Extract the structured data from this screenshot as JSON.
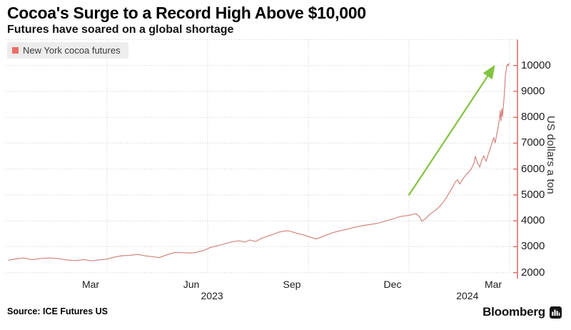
{
  "header": {
    "title": "Cocoa's Surge to a Record High Above $10,000",
    "subtitle": "Futures have soared on a global shortage"
  },
  "legend": {
    "label": "New York cocoa futures",
    "swatch_color": "#ee6c65"
  },
  "footer": {
    "source": "Source: ICE Futures US",
    "brand": "Bloomberg"
  },
  "chart_data": {
    "type": "line",
    "title": "Cocoa's Surge to a Record High Above $10,000",
    "subtitle": "Futures have soared on a global shortage",
    "ylabel": "US dollars a ton",
    "xlabel": "",
    "grid": true,
    "legend_position": "top-left",
    "axis_color": "#d4695e",
    "grid_color": "#c9c9c9",
    "time_unit": "months since 2022-12-01 (t=3 is Mar 2023, t=15 is Mar 2024)",
    "y_tick_labels": [
      2000,
      3000,
      4000,
      5000,
      6000,
      7000,
      8000,
      9000,
      10000
    ],
    "y_grid_values": [
      2000,
      3000,
      4000,
      5000,
      6000,
      7000,
      8000,
      9000,
      10000,
      11000
    ],
    "ylim": [
      1800,
      11000
    ],
    "x_ticks": [
      {
        "label": "Mar",
        "t": 3
      },
      {
        "label": "Jun",
        "t": 6
      },
      {
        "label": "Sep",
        "t": 9
      },
      {
        "label": "Dec",
        "t": 12
      },
      {
        "label": "Mar",
        "t": 15
      }
    ],
    "x_years": [
      {
        "label": "2023",
        "t": 6.13
      },
      {
        "label": "2024",
        "t": 13.74
      }
    ],
    "annotation_arrow": {
      "color": "#82c341",
      "from": {
        "t": 12.0,
        "value": 5000
      },
      "to": {
        "t": 14.53,
        "value": 9950
      }
    },
    "series": [
      {
        "name": "New York cocoa futures",
        "color": "#d0807a",
        "points": [
          [
            0.06,
            2480
          ],
          [
            0.28,
            2530
          ],
          [
            0.51,
            2565
          ],
          [
            0.77,
            2505
          ],
          [
            1.04,
            2550
          ],
          [
            1.3,
            2565
          ],
          [
            1.55,
            2540
          ],
          [
            1.81,
            2490
          ],
          [
            2.06,
            2465
          ],
          [
            2.32,
            2505
          ],
          [
            2.53,
            2455
          ],
          [
            2.77,
            2495
          ],
          [
            3.0,
            2525
          ],
          [
            3.23,
            2605
          ],
          [
            3.45,
            2655
          ],
          [
            3.68,
            2665
          ],
          [
            3.91,
            2705
          ],
          [
            4.15,
            2645
          ],
          [
            4.38,
            2615
          ],
          [
            4.55,
            2580
          ],
          [
            4.77,
            2685
          ],
          [
            5.02,
            2780
          ],
          [
            5.28,
            2770
          ],
          [
            5.53,
            2755
          ],
          [
            5.72,
            2800
          ],
          [
            5.91,
            2870
          ],
          [
            6.09,
            2980
          ],
          [
            6.26,
            3030
          ],
          [
            6.43,
            3080
          ],
          [
            6.6,
            3150
          ],
          [
            6.77,
            3200
          ],
          [
            6.94,
            3230
          ],
          [
            7.11,
            3180
          ],
          [
            7.26,
            3260
          ],
          [
            7.43,
            3200
          ],
          [
            7.6,
            3320
          ],
          [
            7.77,
            3400
          ],
          [
            7.94,
            3470
          ],
          [
            8.11,
            3560
          ],
          [
            8.26,
            3600
          ],
          [
            8.4,
            3620
          ],
          [
            8.55,
            3560
          ],
          [
            8.7,
            3500
          ],
          [
            8.87,
            3450
          ],
          [
            9.04,
            3380
          ],
          [
            9.23,
            3300
          ],
          [
            9.4,
            3380
          ],
          [
            9.55,
            3460
          ],
          [
            9.72,
            3540
          ],
          [
            9.89,
            3600
          ],
          [
            10.06,
            3650
          ],
          [
            10.23,
            3700
          ],
          [
            10.4,
            3760
          ],
          [
            10.57,
            3800
          ],
          [
            10.74,
            3840
          ],
          [
            10.89,
            3870
          ],
          [
            11.04,
            3900
          ],
          [
            11.19,
            3950
          ],
          [
            11.34,
            4010
          ],
          [
            11.49,
            4060
          ],
          [
            11.64,
            4130
          ],
          [
            11.79,
            4180
          ],
          [
            11.94,
            4200
          ],
          [
            12.09,
            4240
          ],
          [
            12.21,
            4275
          ],
          [
            12.32,
            4150
          ],
          [
            12.38,
            3990
          ],
          [
            12.49,
            4080
          ],
          [
            12.6,
            4230
          ],
          [
            12.7,
            4330
          ],
          [
            12.83,
            4450
          ],
          [
            12.96,
            4620
          ],
          [
            13.09,
            4840
          ],
          [
            13.19,
            5060
          ],
          [
            13.3,
            5290
          ],
          [
            13.38,
            5500
          ],
          [
            13.45,
            5590
          ],
          [
            13.51,
            5420
          ],
          [
            13.62,
            5640
          ],
          [
            13.7,
            5780
          ],
          [
            13.79,
            5890
          ],
          [
            13.87,
            6040
          ],
          [
            13.94,
            6240
          ],
          [
            13.98,
            6490
          ],
          [
            14.04,
            6230
          ],
          [
            14.11,
            6080
          ],
          [
            14.17,
            6350
          ],
          [
            14.23,
            6510
          ],
          [
            14.3,
            6300
          ],
          [
            14.36,
            6560
          ],
          [
            14.43,
            6820
          ],
          [
            14.49,
            7060
          ],
          [
            14.53,
            7220
          ],
          [
            14.57,
            7010
          ],
          [
            14.62,
            7370
          ],
          [
            14.66,
            7630
          ],
          [
            14.7,
            7960
          ],
          [
            14.72,
            8250
          ],
          [
            14.74,
            7860
          ],
          [
            14.77,
            8330
          ],
          [
            14.79,
            8030
          ],
          [
            14.81,
            8380
          ],
          [
            14.83,
            8670
          ],
          [
            14.85,
            9020
          ],
          [
            14.87,
            9560
          ],
          [
            14.89,
            9730
          ],
          [
            14.91,
            9960
          ],
          [
            14.94,
            10040
          ],
          [
            14.96,
            9980
          ],
          [
            14.98,
            10080
          ]
        ]
      }
    ]
  }
}
